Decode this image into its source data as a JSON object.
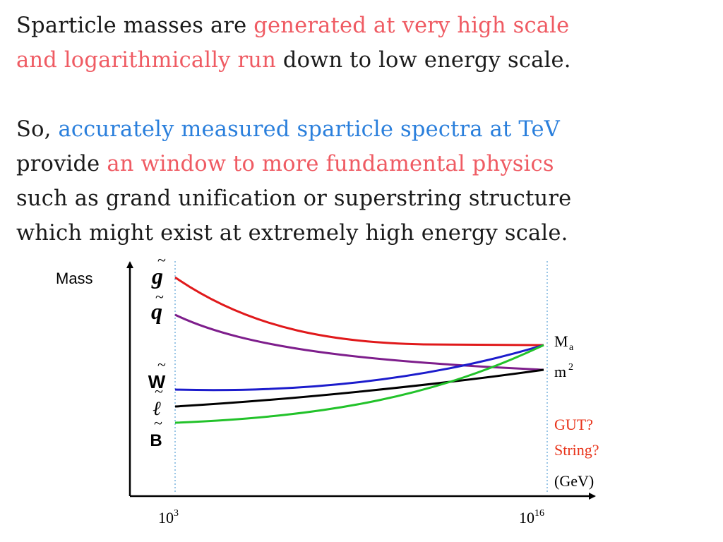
{
  "paragraph1": {
    "seg1": "Sparticle  masses are ",
    "seg2": "generated at very high scale",
    "seg3": "and logarithmically run",
    "seg4": " down to low energy scale."
  },
  "paragraph2": {
    "seg1": "So, ",
    "seg2": "accurately measured sparticle spectra at TeV",
    "seg3": "provide ",
    "seg4": "an window to more  fundamental physics",
    "seg5": "such as grand unification or superstring structure",
    "seg6": "which might exist at extremely high energy scale."
  },
  "diagram": {
    "y_axis_label": "Mass",
    "particles": [
      {
        "id": "gluino",
        "symbol": "g",
        "color": "#e0191b",
        "start_level": 0.92,
        "end": "Ma"
      },
      {
        "id": "squark",
        "symbol": "q",
        "color": "#7e1e8c",
        "start_level": 0.77,
        "end": "m2"
      },
      {
        "id": "wino",
        "symbol": "W",
        "color": "#1c1ccc",
        "start_level": 0.45,
        "end": "Ma"
      },
      {
        "id": "slepton",
        "symbol": "ℓ",
        "color": "#000000",
        "start_level": 0.37,
        "end": "m2"
      },
      {
        "id": "bino",
        "symbol": "B",
        "color": "#22c22a",
        "start_level": 0.29,
        "end": "Ma"
      }
    ],
    "tilde": "~",
    "right_labels": {
      "ma_base": "M",
      "ma_sub": "a",
      "m2_base": "m",
      "m2_sup": "2",
      "gut": "GUT?",
      "string": "String?",
      "unit": "(GeV)"
    },
    "x_ticks": {
      "low_base": "10",
      "low_exp": "3",
      "high_base": "10",
      "high_exp": "16"
    },
    "highlight_color": "#e8331a"
  }
}
